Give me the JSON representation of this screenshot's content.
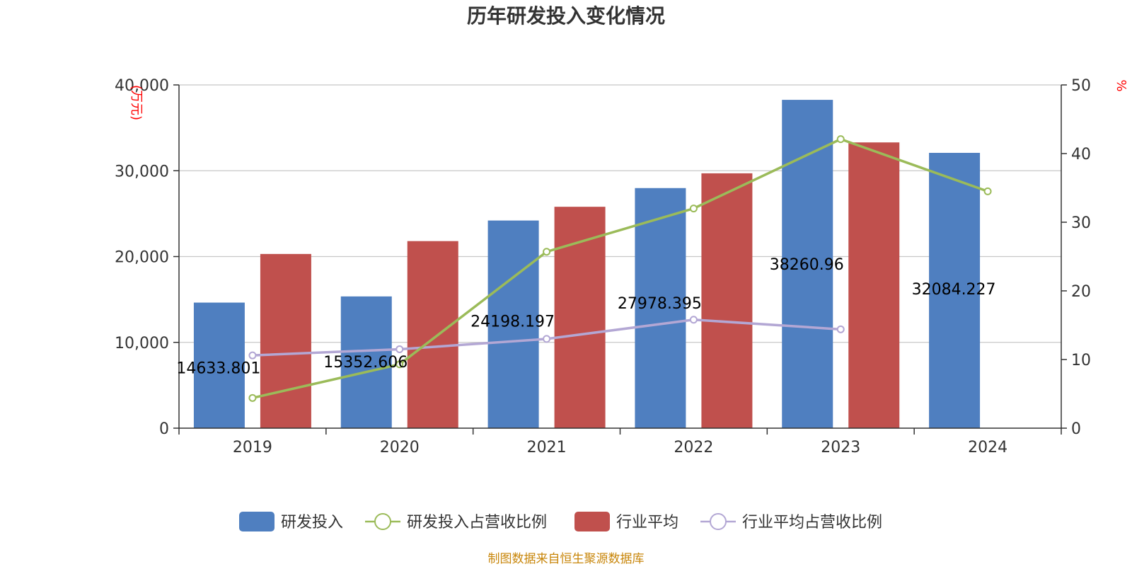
{
  "title": "历年研发投入变化情况",
  "source": "制图数据来自恒生聚源数据库",
  "colors": {
    "rd": "#4f7fc0",
    "industry": "#c0504d",
    "rd_ratio": "#9bbb59",
    "industry_ratio": "#b3a7d4",
    "axis_unit": "#ff0000",
    "source": "#c8860a",
    "grid": "#c8c8c8",
    "axis": "#333333"
  },
  "chart_data": {
    "type": "bar",
    "title": "历年研发投入变化情况",
    "categories": [
      "2019",
      "2020",
      "2021",
      "2022",
      "2023",
      "2024"
    ],
    "y_left": {
      "unit": "万元",
      "min": 0,
      "max": 40000,
      "ticks": [
        0,
        10000,
        20000,
        30000,
        40000
      ],
      "tick_labels": [
        "0",
        "10,000",
        "20,000",
        "30,000",
        "40,000"
      ]
    },
    "y_right": {
      "unit": "%",
      "min": 0,
      "max": 50,
      "ticks": [
        0,
        10,
        20,
        30,
        40,
        50
      ],
      "tick_labels": [
        "0",
        "10",
        "20",
        "30",
        "40",
        "50"
      ]
    },
    "grid": true,
    "legend_position": "bottom",
    "series": [
      {
        "name": "研发投入",
        "type": "bar",
        "axis": "left",
        "values": [
          14633.801,
          15352.606,
          24198.197,
          27978.395,
          38260.96,
          32084.227
        ],
        "labels": [
          "14633.801",
          "15352.606",
          "24198.197",
          "27978.395",
          "38260.96",
          "32084.227"
        ]
      },
      {
        "name": "研发投入占营收比例",
        "type": "line",
        "axis": "right",
        "values": [
          4.4,
          9.3,
          25.7,
          32.0,
          42.1,
          34.5
        ]
      },
      {
        "name": "行业平均",
        "type": "bar",
        "axis": "left",
        "values": [
          20300,
          21800,
          25800,
          29700,
          33300,
          null
        ]
      },
      {
        "name": "行业平均占营收比例",
        "type": "line",
        "axis": "right",
        "values": [
          10.6,
          11.5,
          13.0,
          15.8,
          14.4,
          null
        ]
      }
    ]
  }
}
